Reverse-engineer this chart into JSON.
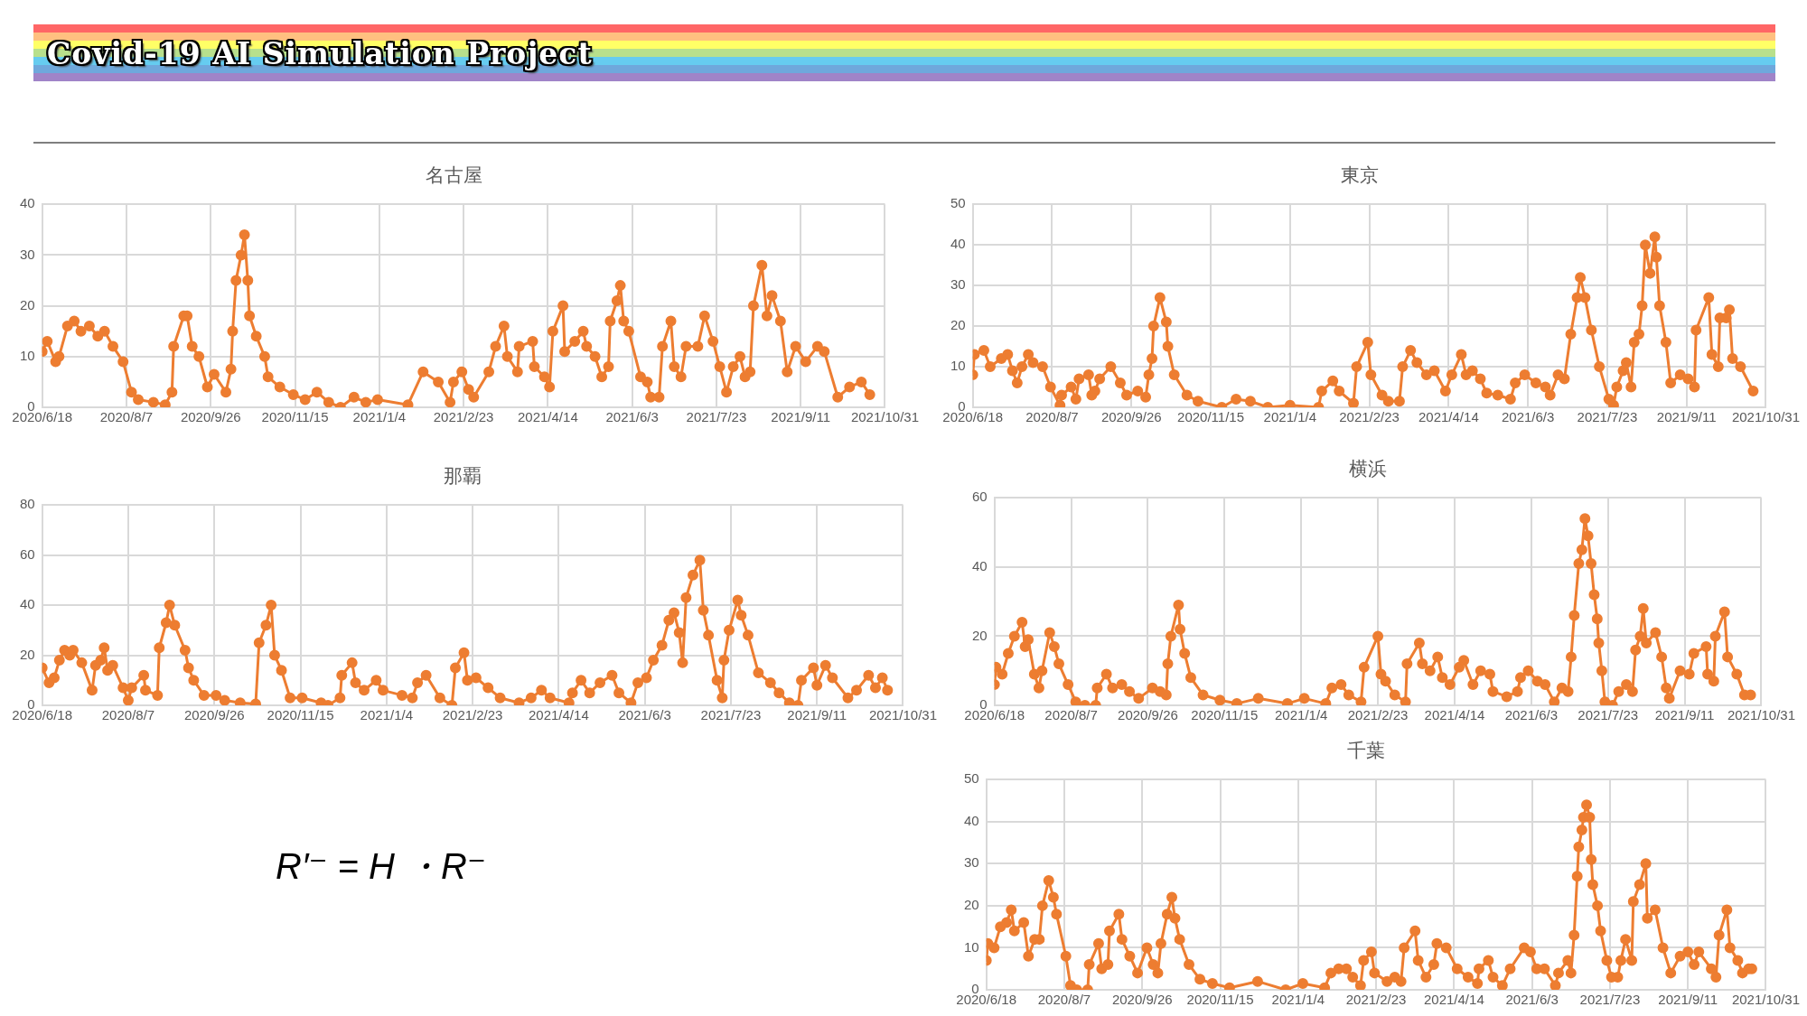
{
  "chart_data": [
    {
      "type": "other",
      "title": "Covid-19 AI Simulation Project",
      "annotations": [
        "R′⁻ = H ・R⁻"
      ]
    },
    {
      "type": "line",
      "title": "名古屋",
      "color": "#ed7d31",
      "marker": "circle",
      "grid": true,
      "ylim": [
        0,
        40
      ],
      "yticks": [
        0,
        10,
        20,
        30,
        40
      ],
      "xlim": [
        "2020-06-18",
        "2021-10-31"
      ],
      "xticks": [
        {
          "value": "2020-06-18",
          "label": "2020/6/18"
        },
        {
          "value": "2020-08-07",
          "label": "2020/8/7"
        },
        {
          "value": "2020-09-26",
          "label": "2020/9/26"
        },
        {
          "value": "2020-11-15",
          "label": "2020/11/15"
        },
        {
          "value": "2021-01-04",
          "label": "2021/1/4"
        },
        {
          "value": "2021-02-23",
          "label": "2021/2/23"
        },
        {
          "value": "2021-04-14",
          "label": "2021/4/14"
        },
        {
          "value": "2021-06-03",
          "label": "2021/6/3"
        },
        {
          "value": "2021-07-23",
          "label": "2021/7/23"
        },
        {
          "value": "2021-09-11",
          "label": "2021/9/11"
        },
        {
          "value": "2021-10-31",
          "label": "2021/10/31"
        }
      ],
      "x": [
        "2020-06-18",
        "2020-06-21",
        "2020-06-26",
        "2020-06-28",
        "2020-07-03",
        "2020-07-07",
        "2020-07-11",
        "2020-07-16",
        "2020-07-21",
        "2020-07-25",
        "2020-07-30",
        "2020-08-05",
        "2020-08-10",
        "2020-08-14",
        "2020-08-23",
        "2020-08-30",
        "2020-09-03",
        "2020-09-04",
        "2020-09-10",
        "2020-09-12",
        "2020-09-15",
        "2020-09-19",
        "2020-09-24",
        "2020-09-28",
        "2020-10-05",
        "2020-10-08",
        "2020-10-09",
        "2020-10-11",
        "2020-10-14",
        "2020-10-16",
        "2020-10-18",
        "2020-10-19",
        "2020-10-23",
        "2020-10-28",
        "2020-10-30",
        "2020-11-06",
        "2020-11-14",
        "2020-11-21",
        "2020-11-28",
        "2020-12-05",
        "2020-12-12",
        "2020-12-20",
        "2020-12-27",
        "2021-01-03",
        "2021-01-21",
        "2021-01-30",
        "2021-02-08",
        "2021-02-15",
        "2021-02-17",
        "2021-02-22",
        "2021-02-26",
        "2021-03-01",
        "2021-03-10",
        "2021-03-14",
        "2021-03-19",
        "2021-03-21",
        "2021-03-27",
        "2021-03-28",
        "2021-04-05",
        "2021-04-06",
        "2021-04-12",
        "2021-04-15",
        "2021-04-17",
        "2021-04-23",
        "2021-04-24",
        "2021-04-30",
        "2021-05-05",
        "2021-05-07",
        "2021-05-12",
        "2021-05-16",
        "2021-05-20",
        "2021-05-21",
        "2021-05-25",
        "2021-05-27",
        "2021-05-29",
        "2021-06-01",
        "2021-06-08",
        "2021-06-12",
        "2021-06-14",
        "2021-06-19",
        "2021-06-21",
        "2021-06-26",
        "2021-06-28",
        "2021-07-02",
        "2021-07-05",
        "2021-07-12",
        "2021-07-16",
        "2021-07-21",
        "2021-07-25",
        "2021-07-29",
        "2021-08-02",
        "2021-08-06",
        "2021-08-09",
        "2021-08-12",
        "2021-08-14",
        "2021-08-19",
        "2021-08-22",
        "2021-08-25",
        "2021-08-30",
        "2021-09-03",
        "2021-09-08",
        "2021-09-14",
        "2021-09-21",
        "2021-09-25",
        "2021-10-03",
        "2021-10-10",
        "2021-10-17",
        "2021-10-22"
      ],
      "values": [
        11,
        13,
        9,
        10,
        16,
        17,
        15,
        16,
        14,
        15,
        12,
        9,
        3,
        1.5,
        1,
        0.5,
        3,
        12,
        18,
        18,
        12,
        10,
        4,
        6.5,
        3,
        7.5,
        15,
        25,
        30,
        34,
        25,
        18,
        14,
        10,
        6,
        4,
        2.5,
        1.5,
        3,
        1,
        0,
        2,
        1,
        1.5,
        0.5,
        7,
        5,
        1,
        5,
        7,
        3.5,
        2,
        7,
        12,
        16,
        10,
        7,
        12,
        13,
        8,
        6,
        4,
        15,
        20,
        11,
        13,
        15,
        12,
        10,
        6,
        8,
        17,
        21,
        24,
        17,
        15,
        6,
        5,
        2,
        2,
        12,
        17,
        8,
        6,
        12,
        12,
        18,
        13,
        8,
        3,
        8,
        10,
        6,
        7,
        20,
        28,
        18,
        22,
        17,
        7,
        12,
        9,
        12,
        11,
        2,
        4,
        5,
        2.5
      ]
    },
    {
      "type": "line",
      "title": "東京",
      "color": "#ed7d31",
      "marker": "circle",
      "grid": true,
      "ylim": [
        0,
        50
      ],
      "yticks": [
        0,
        10,
        20,
        30,
        40,
        50
      ],
      "xlim": [
        "2020-06-18",
        "2021-10-31"
      ],
      "xticks": [
        {
          "value": "2020-06-18",
          "label": "2020/6/18"
        },
        {
          "value": "2020-08-07",
          "label": "2020/8/7"
        },
        {
          "value": "2020-09-26",
          "label": "2020/9/26"
        },
        {
          "value": "2020-11-15",
          "label": "2020/11/15"
        },
        {
          "value": "2021-01-04",
          "label": "2021/1/4"
        },
        {
          "value": "2021-02-23",
          "label": "2021/2/23"
        },
        {
          "value": "2021-04-14",
          "label": "2021/4/14"
        },
        {
          "value": "2021-06-03",
          "label": "2021/6/3"
        },
        {
          "value": "2021-07-23",
          "label": "2021/7/23"
        },
        {
          "value": "2021-09-11",
          "label": "2021/9/11"
        },
        {
          "value": "2021-10-31",
          "label": "2021/10/31"
        }
      ],
      "x": [
        "2020-06-18",
        "2020-06-19",
        "2020-06-25",
        "2020-06-29",
        "2020-07-06",
        "2020-07-10",
        "2020-07-13",
        "2020-07-16",
        "2020-07-19",
        "2020-07-23",
        "2020-07-26",
        "2020-08-01",
        "2020-08-06",
        "2020-08-12",
        "2020-08-13",
        "2020-08-19",
        "2020-08-22",
        "2020-08-24",
        "2020-08-30",
        "2020-09-01",
        "2020-09-03",
        "2020-09-06",
        "2020-09-13",
        "2020-09-19",
        "2020-09-23",
        "2020-09-30",
        "2020-10-05",
        "2020-10-07",
        "2020-10-09",
        "2020-10-10",
        "2020-10-14",
        "2020-10-18",
        "2020-10-19",
        "2020-10-23",
        "2020-10-31",
        "2020-11-07",
        "2020-11-22",
        "2020-12-01",
        "2020-12-10",
        "2020-12-21",
        "2021-01-04",
        "2021-01-22",
        "2021-01-24",
        "2021-01-31",
        "2021-02-04",
        "2021-02-13",
        "2021-02-15",
        "2021-02-22",
        "2021-02-24",
        "2021-03-03",
        "2021-03-07",
        "2021-03-14",
        "2021-03-16",
        "2021-03-21",
        "2021-03-25",
        "2021-03-31",
        "2021-04-05",
        "2021-04-12",
        "2021-04-16",
        "2021-04-22",
        "2021-04-25",
        "2021-04-29",
        "2021-05-04",
        "2021-05-08",
        "2021-05-15",
        "2021-05-23",
        "2021-05-26",
        "2021-06-01",
        "2021-06-08",
        "2021-06-14",
        "2021-06-17",
        "2021-06-22",
        "2021-06-26",
        "2021-06-30",
        "2021-07-04",
        "2021-07-06",
        "2021-07-09",
        "2021-07-13",
        "2021-07-18",
        "2021-07-24",
        "2021-07-27",
        "2021-07-29",
        "2021-08-02",
        "2021-08-04",
        "2021-08-07",
        "2021-08-09",
        "2021-08-12",
        "2021-08-14",
        "2021-08-16",
        "2021-08-19",
        "2021-08-22",
        "2021-08-23",
        "2021-08-25",
        "2021-08-29",
        "2021-09-01",
        "2021-09-07",
        "2021-09-12",
        "2021-09-16",
        "2021-09-17",
        "2021-09-25",
        "2021-09-27",
        "2021-10-01",
        "2021-10-02",
        "2021-10-06",
        "2021-10-08",
        "2021-10-10",
        "2021-10-15",
        "2021-10-23"
      ],
      "values": [
        8,
        13,
        14,
        10,
        12,
        13,
        9,
        6,
        10,
        13,
        11,
        10,
        5,
        0.5,
        3,
        5,
        2,
        7,
        8,
        3,
        4,
        7,
        10,
        6,
        3,
        4,
        2.5,
        8,
        12,
        20,
        27,
        21,
        15,
        8,
        3,
        1.5,
        0,
        2,
        1.5,
        0,
        0.5,
        0,
        4,
        6.5,
        4,
        1,
        10,
        16,
        8,
        3,
        1.5,
        1.5,
        10,
        14,
        11,
        8,
        9,
        4,
        8,
        13,
        8,
        9,
        7,
        3.5,
        3,
        2,
        6,
        8,
        6,
        5,
        3,
        8,
        7,
        18,
        27,
        32,
        27,
        19,
        10,
        2,
        0.5,
        5,
        9,
        11,
        5,
        16,
        18,
        25,
        40,
        33,
        42,
        37,
        25,
        16,
        6,
        8,
        7,
        5,
        19,
        27,
        13,
        10,
        22,
        22,
        24,
        12,
        10,
        4
      ]
    },
    {
      "type": "line",
      "title": "那覇",
      "color": "#ed7d31",
      "marker": "circle",
      "grid": true,
      "ylim": [
        0,
        80
      ],
      "yticks": [
        0,
        20,
        40,
        60,
        80
      ],
      "xlim": [
        "2020-06-18",
        "2021-10-31"
      ],
      "xticks": [
        {
          "value": "2020-06-18",
          "label": "2020/6/18"
        },
        {
          "value": "2020-08-07",
          "label": "2020/8/7"
        },
        {
          "value": "2020-09-26",
          "label": "2020/9/26"
        },
        {
          "value": "2020-11-15",
          "label": "2020/11/15"
        },
        {
          "value": "2021-01-04",
          "label": "2021/1/4"
        },
        {
          "value": "2021-02-23",
          "label": "2021/2/23"
        },
        {
          "value": "2021-04-14",
          "label": "2021/4/14"
        },
        {
          "value": "2021-06-03",
          "label": "2021/6/3"
        },
        {
          "value": "2021-07-23",
          "label": "2021/7/23"
        },
        {
          "value": "2021-09-11",
          "label": "2021/9/11"
        },
        {
          "value": "2021-10-31",
          "label": "2021/10/31"
        }
      ],
      "x": [
        "2020-06-18",
        "2020-06-22",
        "2020-06-25",
        "2020-06-28",
        "2020-07-01",
        "2020-07-04",
        "2020-07-06",
        "2020-07-11",
        "2020-07-17",
        "2020-07-19",
        "2020-07-22",
        "2020-07-24",
        "2020-07-26",
        "2020-07-29",
        "2020-08-04",
        "2020-08-07",
        "2020-08-09",
        "2020-08-16",
        "2020-08-17",
        "2020-08-24",
        "2020-08-25",
        "2020-08-29",
        "2020-08-31",
        "2020-09-03",
        "2020-09-09",
        "2020-09-11",
        "2020-09-14",
        "2020-09-20",
        "2020-09-27",
        "2020-10-02",
        "2020-10-11",
        "2020-10-20",
        "2020-10-22",
        "2020-10-26",
        "2020-10-29",
        "2020-10-31",
        "2020-11-04",
        "2020-11-09",
        "2020-11-16",
        "2020-11-27",
        "2020-12-01",
        "2020-12-08",
        "2020-12-09",
        "2020-12-15",
        "2020-12-17",
        "2020-12-22",
        "2020-12-29",
        "2021-01-02",
        "2021-01-13",
        "2021-01-19",
        "2021-01-22",
        "2021-01-27",
        "2021-02-04",
        "2021-02-11",
        "2021-02-13",
        "2021-02-18",
        "2021-02-20",
        "2021-02-25",
        "2021-03-04",
        "2021-03-11",
        "2021-03-22",
        "2021-03-29",
        "2021-04-04",
        "2021-04-09",
        "2021-04-20",
        "2021-04-22",
        "2021-04-27",
        "2021-05-02",
        "2021-05-08",
        "2021-05-15",
        "2021-05-19",
        "2021-05-26",
        "2021-05-30",
        "2021-06-04",
        "2021-06-08",
        "2021-06-13",
        "2021-06-17",
        "2021-06-20",
        "2021-06-23",
        "2021-06-25",
        "2021-06-27",
        "2021-07-01",
        "2021-07-05",
        "2021-07-07",
        "2021-07-10",
        "2021-07-15",
        "2021-07-18",
        "2021-07-19",
        "2021-07-22",
        "2021-07-27",
        "2021-07-29",
        "2021-08-02",
        "2021-08-08",
        "2021-08-15",
        "2021-08-20",
        "2021-08-26",
        "2021-08-31",
        "2021-09-02",
        "2021-09-09",
        "2021-09-11",
        "2021-09-16",
        "2021-09-20",
        "2021-09-29",
        "2021-10-04",
        "2021-10-11",
        "2021-10-15",
        "2021-10-19",
        "2021-10-22"
      ],
      "values": [
        15,
        9,
        11,
        18,
        22,
        20,
        22,
        17,
        6,
        16,
        18,
        23,
        14,
        16,
        7,
        2,
        7,
        12,
        6,
        4,
        23,
        33,
        40,
        32,
        22,
        15,
        10,
        4,
        4,
        2,
        1,
        0.5,
        25,
        32,
        40,
        20,
        14,
        3,
        3,
        1,
        0,
        3,
        12,
        17,
        9,
        6,
        10,
        6,
        4,
        3,
        9,
        12,
        3,
        0,
        15,
        21,
        10,
        11,
        7,
        3,
        1,
        3,
        6,
        3,
        1,
        5,
        10,
        5,
        9,
        12,
        5,
        1,
        9,
        11,
        18,
        24,
        34,
        37,
        29,
        17,
        43,
        52,
        58,
        38,
        28,
        10,
        3,
        18,
        30,
        42,
        36,
        28,
        13,
        9,
        5,
        1,
        0,
        10,
        15,
        8,
        16,
        11,
        3,
        6,
        12,
        7,
        11,
        6
      ]
    },
    {
      "type": "line",
      "title": "横浜",
      "color": "#ed7d31",
      "marker": "circle",
      "grid": true,
      "ylim": [
        0,
        60
      ],
      "yticks": [
        0,
        20,
        40,
        60
      ],
      "xlim": [
        "2020-06-18",
        "2021-10-31"
      ],
      "xticks": [
        {
          "value": "2020-06-18",
          "label": "2020/6/18"
        },
        {
          "value": "2020-08-07",
          "label": "2020/8/7"
        },
        {
          "value": "2020-09-26",
          "label": "2020/9/26"
        },
        {
          "value": "2020-11-15",
          "label": "2020/11/15"
        },
        {
          "value": "2021-01-04",
          "label": "2021/1/4"
        },
        {
          "value": "2021-02-23",
          "label": "2021/2/23"
        },
        {
          "value": "2021-04-14",
          "label": "2021/4/14"
        },
        {
          "value": "2021-06-03",
          "label": "2021/6/3"
        },
        {
          "value": "2021-07-23",
          "label": "2021/7/23"
        },
        {
          "value": "2021-09-11",
          "label": "2021/9/11"
        },
        {
          "value": "2021-10-31",
          "label": "2021/10/31"
        }
      ],
      "x": [
        "2020-06-18",
        "2020-06-19",
        "2020-06-23",
        "2020-06-27",
        "2020-07-01",
        "2020-07-06",
        "2020-07-08",
        "2020-07-10",
        "2020-07-14",
        "2020-07-17",
        "2020-07-19",
        "2020-07-24",
        "2020-07-27",
        "2020-07-30",
        "2020-08-05",
        "2020-08-10",
        "2020-08-16",
        "2020-08-23",
        "2020-08-24",
        "2020-08-30",
        "2020-09-03",
        "2020-09-09",
        "2020-09-14",
        "2020-09-20",
        "2020-09-29",
        "2020-10-04",
        "2020-10-08",
        "2020-10-09",
        "2020-10-11",
        "2020-10-16",
        "2020-10-17",
        "2020-10-20",
        "2020-10-24",
        "2020-11-01",
        "2020-11-12",
        "2020-11-23",
        "2020-12-07",
        "2020-12-26",
        "2021-01-06",
        "2021-01-20",
        "2021-01-24",
        "2021-01-30",
        "2021-02-04",
        "2021-02-12",
        "2021-02-14",
        "2021-02-23",
        "2021-02-25",
        "2021-02-28",
        "2021-03-06",
        "2021-03-13",
        "2021-03-14",
        "2021-03-22",
        "2021-03-24",
        "2021-03-29",
        "2021-04-03",
        "2021-04-06",
        "2021-04-11",
        "2021-04-17",
        "2021-04-20",
        "2021-04-26",
        "2021-05-01",
        "2021-05-07",
        "2021-05-09",
        "2021-05-18",
        "2021-05-25",
        "2021-05-27",
        "2021-06-01",
        "2021-06-07",
        "2021-06-12",
        "2021-06-18",
        "2021-06-23",
        "2021-06-27",
        "2021-06-29",
        "2021-07-01",
        "2021-07-04",
        "2021-07-06",
        "2021-07-08",
        "2021-07-10",
        "2021-07-12",
        "2021-07-14",
        "2021-07-16",
        "2021-07-17",
        "2021-07-19",
        "2021-07-21",
        "2021-07-26",
        "2021-07-30",
        "2021-08-04",
        "2021-08-08",
        "2021-08-10",
        "2021-08-13",
        "2021-08-15",
        "2021-08-17",
        "2021-08-23",
        "2021-08-27",
        "2021-08-30",
        "2021-09-01",
        "2021-09-08",
        "2021-09-14",
        "2021-09-17",
        "2021-09-25",
        "2021-09-26",
        "2021-09-30",
        "2021-10-01",
        "2021-10-07",
        "2021-10-09",
        "2021-10-15",
        "2021-10-20",
        "2021-10-24"
      ],
      "values": [
        6,
        11,
        9,
        15,
        20,
        24,
        17,
        19,
        9,
        5,
        10,
        21,
        17,
        12,
        6,
        1,
        0,
        0,
        5,
        9,
        5,
        6,
        4,
        2,
        5,
        4,
        3,
        12,
        20,
        29,
        22,
        15,
        8,
        3,
        1.5,
        0.5,
        2,
        0.5,
        2,
        0.5,
        5,
        6,
        3,
        1,
        11,
        20,
        9,
        7,
        3,
        1,
        12,
        18,
        12,
        10,
        14,
        8,
        6,
        11,
        13,
        6,
        10,
        9,
        4,
        2.5,
        4,
        8,
        10,
        7,
        6,
        1,
        5,
        4,
        14,
        26,
        41,
        45,
        54,
        49,
        41,
        32,
        25,
        18,
        10,
        1,
        0,
        4,
        6,
        4,
        16,
        20,
        28,
        18,
        21,
        14,
        5,
        2,
        10,
        9,
        15,
        17,
        9,
        7,
        20,
        27,
        14,
        9,
        3,
        3
      ]
    },
    {
      "type": "line",
      "title": "千葉",
      "color": "#ed7d31",
      "marker": "circle",
      "grid": true,
      "ylim": [
        0,
        50
      ],
      "yticks": [
        0,
        10,
        20,
        30,
        40,
        50
      ],
      "xlim": [
        "2020-06-18",
        "2021-10-31"
      ],
      "xticks": [
        {
          "value": "2020-06-18",
          "label": "2020/6/18"
        },
        {
          "value": "2020-08-07",
          "label": "2020/8/7"
        },
        {
          "value": "2020-09-26",
          "label": "2020/9/26"
        },
        {
          "value": "2020-11-15",
          "label": "2020/11/15"
        },
        {
          "value": "2021-01-04",
          "label": "2021/1/4"
        },
        {
          "value": "2021-02-23",
          "label": "2021/2/23"
        },
        {
          "value": "2021-04-14",
          "label": "2021/4/14"
        },
        {
          "value": "2021-06-03",
          "label": "2021/6/3"
        },
        {
          "value": "2021-07-23",
          "label": "2021/7/23"
        },
        {
          "value": "2021-09-11",
          "label": "2021/9/11"
        },
        {
          "value": "2021-10-31",
          "label": "2021/10/31"
        }
      ],
      "x": [
        "2020-06-18",
        "2020-06-19",
        "2020-06-23",
        "2020-06-27",
        "2020-07-01",
        "2020-07-04",
        "2020-07-06",
        "2020-07-12",
        "2020-07-15",
        "2020-07-19",
        "2020-07-22",
        "2020-07-24",
        "2020-07-28",
        "2020-07-31",
        "2020-08-02",
        "2020-08-08",
        "2020-08-11",
        "2020-08-15",
        "2020-08-22",
        "2020-08-23",
        "2020-08-29",
        "2020-08-31",
        "2020-09-04",
        "2020-09-05",
        "2020-09-11",
        "2020-09-13",
        "2020-09-18",
        "2020-09-23",
        "2020-09-29",
        "2020-10-03",
        "2020-10-06",
        "2020-10-08",
        "2020-10-12",
        "2020-10-15",
        "2020-10-17",
        "2020-10-20",
        "2020-10-26",
        "2020-11-02",
        "2020-11-10",
        "2020-11-21",
        "2020-12-09",
        "2020-12-27",
        "2021-01-07",
        "2021-01-21",
        "2021-01-25",
        "2021-01-30",
        "2021-02-04",
        "2021-02-08",
        "2021-02-13",
        "2021-02-15",
        "2021-02-20",
        "2021-02-22",
        "2021-03-02",
        "2021-03-07",
        "2021-03-11",
        "2021-03-13",
        "2021-03-20",
        "2021-03-22",
        "2021-03-27",
        "2021-04-01",
        "2021-04-03",
        "2021-04-09",
        "2021-04-16",
        "2021-04-23",
        "2021-04-29",
        "2021-04-30",
        "2021-05-06",
        "2021-05-09",
        "2021-05-15",
        "2021-05-20",
        "2021-05-29",
        "2021-06-02",
        "2021-06-06",
        "2021-06-11",
        "2021-06-18",
        "2021-06-20",
        "2021-06-26",
        "2021-06-28",
        "2021-06-30",
        "2021-07-02",
        "2021-07-03",
        "2021-07-05",
        "2021-07-06",
        "2021-07-08",
        "2021-07-10",
        "2021-07-11",
        "2021-07-12",
        "2021-07-15",
        "2021-07-17",
        "2021-07-21",
        "2021-07-24",
        "2021-07-28",
        "2021-07-30",
        "2021-08-02",
        "2021-08-06",
        "2021-08-07",
        "2021-08-11",
        "2021-08-15",
        "2021-08-16",
        "2021-08-21",
        "2021-08-26",
        "2021-08-31",
        "2021-09-06",
        "2021-09-11",
        "2021-09-15",
        "2021-09-18",
        "2021-09-26",
        "2021-09-29",
        "2021-10-01",
        "2021-10-06",
        "2021-10-08",
        "2021-10-13",
        "2021-10-16",
        "2021-10-20",
        "2021-10-22"
      ],
      "values": [
        7,
        11,
        10,
        15,
        16,
        19,
        14,
        16,
        8,
        12,
        12,
        20,
        26,
        22,
        18,
        8,
        1,
        0,
        0,
        6,
        11,
        5,
        6,
        14,
        18,
        12,
        8,
        4,
        10,
        6,
        4,
        11,
        18,
        22,
        17,
        12,
        6,
        2.5,
        1.5,
        0.5,
        2,
        0,
        1.5,
        0.5,
        4,
        5,
        5,
        3,
        1,
        7,
        9,
        4,
        2,
        3,
        2,
        10,
        14,
        7,
        3,
        6,
        11,
        10,
        5,
        3,
        1.5,
        5,
        7,
        3,
        1,
        5,
        10,
        9,
        5,
        5,
        1,
        4,
        7,
        4,
        13,
        27,
        34,
        38,
        41,
        44,
        41,
        31,
        25,
        20,
        14,
        7,
        3,
        3,
        7,
        12,
        7,
        21,
        25,
        30,
        17,
        19,
        10,
        4,
        8,
        9,
        6,
        9,
        5,
        3,
        13,
        19,
        10,
        7,
        4,
        5,
        5
      ]
    }
  ]
}
